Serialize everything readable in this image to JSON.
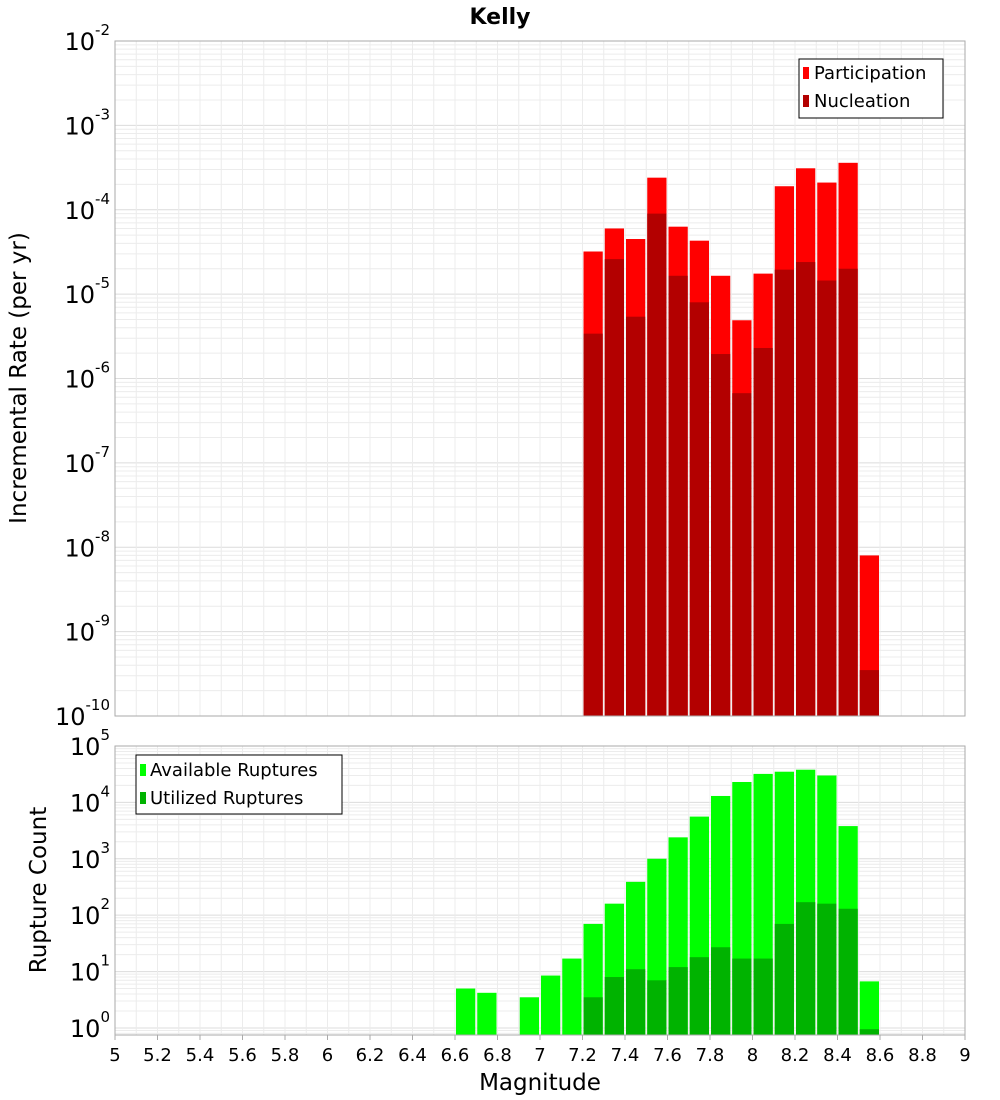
{
  "chart_data": [
    {
      "type": "bar",
      "title": "Kelly",
      "ylabel": "Incremental Rate (per yr)",
      "xlabel": "",
      "yscale": "log",
      "ylim": [
        1e-10,
        0.01
      ],
      "xlim": [
        5,
        9
      ],
      "grid": true,
      "legend_position": "top-right",
      "x": [
        7.25,
        7.35,
        7.45,
        7.55,
        7.65,
        7.75,
        7.85,
        7.95,
        8.05,
        8.15,
        8.25,
        8.35,
        8.45,
        8.55
      ],
      "series": [
        {
          "name": "Participation",
          "color": "#ff0000",
          "values": [
            3.2e-05,
            6e-05,
            4.5e-05,
            0.00024,
            6.3e-05,
            4.3e-05,
            1.65e-05,
            4.9e-06,
            1.75e-05,
            0.00019,
            0.00031,
            0.00021,
            0.00036,
            8e-09
          ]
        },
        {
          "name": "Nucleation",
          "color": "#b30000",
          "values": [
            3.4e-06,
            2.6e-05,
            5.4e-06,
            9e-05,
            1.65e-05,
            8e-06,
            1.95e-06,
            6.7e-07,
            2.3e-06,
            1.95e-05,
            2.4e-05,
            1.45e-05,
            2e-05,
            3.5e-10
          ]
        }
      ]
    },
    {
      "type": "bar",
      "title": "",
      "ylabel": "Rupture Count",
      "xlabel": "Magnitude",
      "yscale": "log",
      "ylim": [
        0.75,
        100000
      ],
      "xlim": [
        5,
        9
      ],
      "grid": true,
      "legend_position": "top-left",
      "x": [
        6.65,
        6.75,
        6.95,
        7.05,
        7.15,
        7.25,
        7.35,
        7.45,
        7.55,
        7.65,
        7.75,
        7.85,
        7.95,
        8.05,
        8.15,
        8.25,
        8.35,
        8.45,
        8.55
      ],
      "series": [
        {
          "name": "Available Ruptures",
          "color": "#00ff00",
          "values": [
            5,
            4.2,
            3.5,
            8.5,
            17,
            70,
            160,
            390,
            1000,
            2400,
            5600,
            13000,
            23000,
            32000,
            35000,
            38000,
            30000,
            3800,
            6.7
          ]
        },
        {
          "name": "Utilized Ruptures",
          "color": "#00b300",
          "values": [
            0,
            0,
            0,
            0,
            0,
            3.5,
            8,
            11,
            7,
            12,
            18,
            27,
            17,
            17,
            70,
            170,
            160,
            130,
            0.95
          ]
        }
      ]
    }
  ],
  "x_ticks": [
    "5",
    "5.2",
    "5.4",
    "5.6",
    "5.8",
    "6",
    "6.2",
    "6.4",
    "6.6",
    "6.8",
    "7",
    "7.2",
    "7.4",
    "7.6",
    "7.8",
    "8",
    "8.2",
    "8.4",
    "8.6",
    "8.8",
    "9"
  ],
  "top_y_ticks": [
    {
      "base": "10",
      "exp": "-10"
    },
    {
      "base": "10",
      "exp": "-9"
    },
    {
      "base": "10",
      "exp": "-8"
    },
    {
      "base": "10",
      "exp": "-7"
    },
    {
      "base": "10",
      "exp": "-6"
    },
    {
      "base": "10",
      "exp": "-5"
    },
    {
      "base": "10",
      "exp": "-4"
    },
    {
      "base": "10",
      "exp": "-3"
    },
    {
      "base": "10",
      "exp": "-2"
    }
  ],
  "bottom_y_ticks": [
    {
      "base": "10",
      "exp": "0"
    },
    {
      "base": "10",
      "exp": "1"
    },
    {
      "base": "10",
      "exp": "2"
    },
    {
      "base": "10",
      "exp": "3"
    },
    {
      "base": "10",
      "exp": "4"
    },
    {
      "base": "10",
      "exp": "5"
    }
  ]
}
